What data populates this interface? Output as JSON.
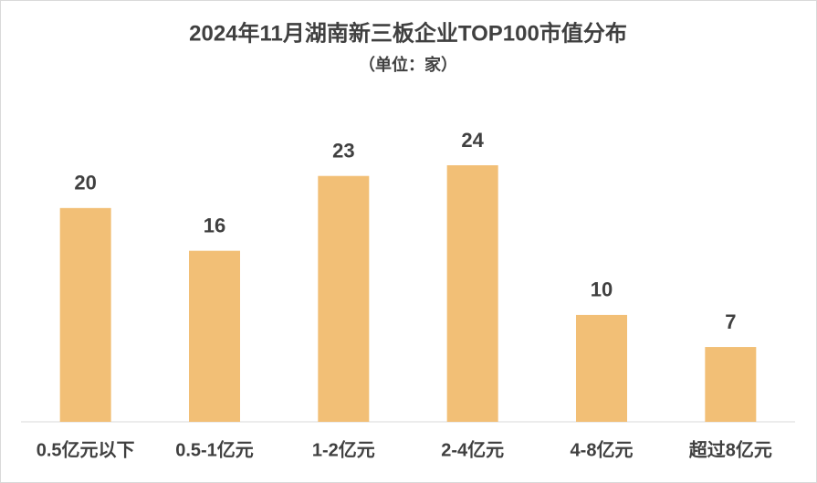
{
  "chart_data": {
    "type": "bar",
    "title": "2024年11月湖南新三板企业TOP100市值分布",
    "subtitle": "（单位：家）",
    "categories": [
      "0.5亿元以下",
      "0.5-1亿元",
      "1-2亿元",
      "2-4亿元",
      "4-8亿元",
      "超过8亿元"
    ],
    "values": [
      20,
      16,
      23,
      24,
      10,
      7
    ],
    "color": "#f2bf76",
    "grid": false
  }
}
